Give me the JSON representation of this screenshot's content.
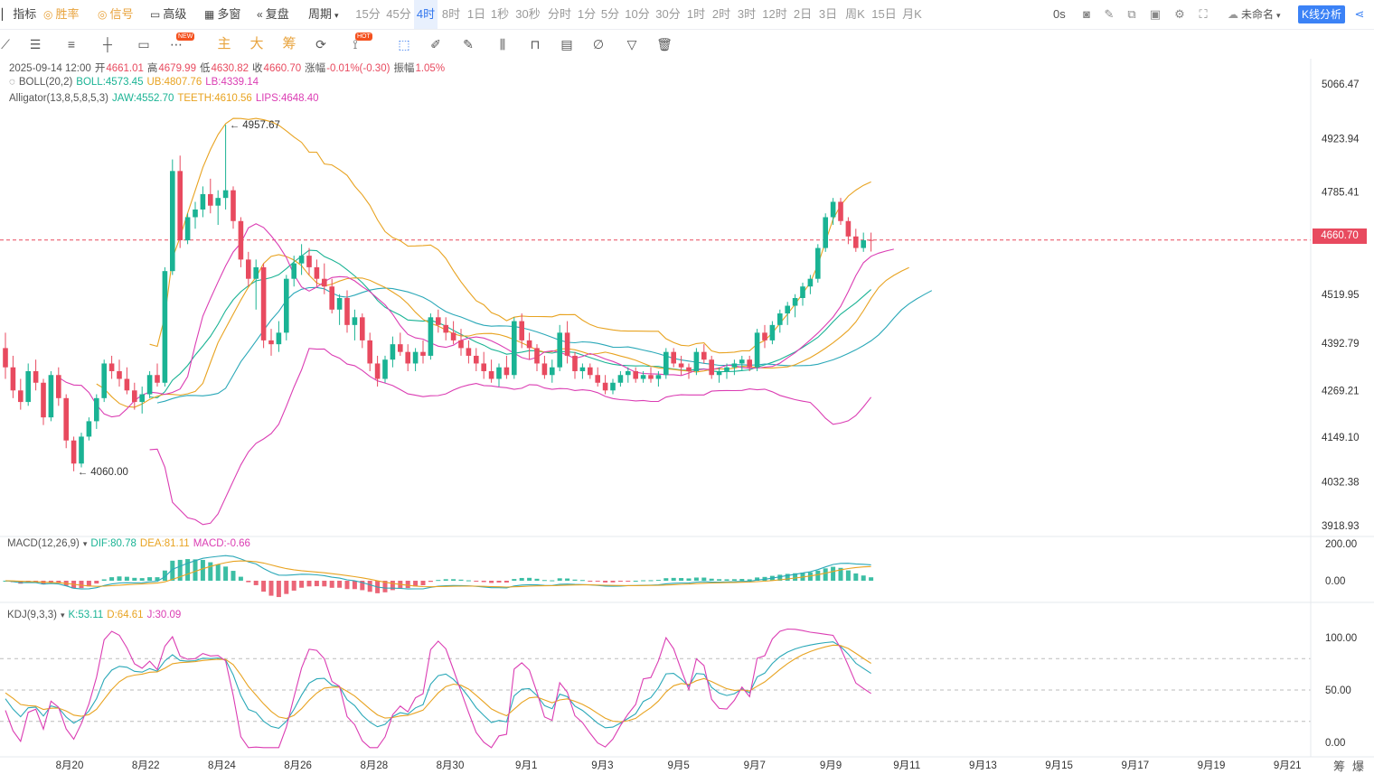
{
  "toolbar": {
    "indicator": "指标",
    "winrate": "胜率",
    "signal": "信号",
    "advanced": "高级",
    "multiwin": "多窗",
    "replay": "复盘",
    "period": "周期",
    "periods": [
      "15分",
      "45分",
      "4时",
      "8时",
      "1日",
      "1秒",
      "30秒",
      "分时",
      "1分",
      "5分",
      "10分",
      "30分",
      "1时",
      "2时",
      "3时",
      "12时",
      "2日",
      "3日",
      "周K",
      "15日",
      "月K"
    ],
    "active_period": "4时",
    "seconds": "0s",
    "layout_name": "未命名",
    "kline_analysis": "K线分析"
  },
  "drawtools": {
    "zhu": "主",
    "da": "大",
    "chou": "筹",
    "new_badge": "NEW",
    "hot_badge": "HOT"
  },
  "ohlc": {
    "date": "2025-09-14 12:00",
    "open_label": "开",
    "open": "4661.01",
    "high_label": "高",
    "high": "4679.99",
    "low_label": "低",
    "low": "4630.82",
    "close_label": "收",
    "close": "4660.70",
    "chg_label": "涨幅",
    "chg": "-0.01%(-0.30)",
    "amp_label": "振幅",
    "amp": "1.05%"
  },
  "boll": {
    "name": "BOLL(20,2)",
    "mid": "BOLL:4573.45",
    "ub": "UB:4807.76",
    "lb": "LB:4339.14"
  },
  "alligator": {
    "name": "Alligator(13,8,5,8,5,3)",
    "jaw": "JAW:4552.70",
    "teeth": "TEETH:4610.56",
    "lips": "LIPS:4648.40"
  },
  "macd": {
    "name": "MACD(12,26,9)",
    "dif": "DIF:80.78",
    "dea": "DEA:81.11",
    "macd": "MACD:-0.66"
  },
  "kdj": {
    "name": "KDJ(9,3,3)",
    "k": "K:53.11",
    "d": "D:64.61",
    "j": "J:30.09"
  },
  "price_axis": [
    "5066.47",
    "4923.94",
    "4785.41",
    "4660.70",
    "4519.95",
    "4392.79",
    "4269.21",
    "4149.10",
    "4032.38",
    "3918.93"
  ],
  "macd_axis": [
    "200.00",
    "0.00"
  ],
  "kdj_axis": [
    "100.00",
    "50.00",
    "0.00"
  ],
  "current_price": "4660.70",
  "annotations": {
    "high": "4957.67",
    "low": "4060.00"
  },
  "x_labels": [
    "8月20",
    "8月22",
    "8月24",
    "8月26",
    "8月28",
    "8月30",
    "9月1",
    "9月3",
    "9月5",
    "9月7",
    "9月9",
    "9月11",
    "9月13",
    "9月15",
    "9月17",
    "9月19",
    "9月21"
  ],
  "corner": {
    "a": "筹",
    "b": "爆"
  },
  "colors": {
    "up": "#1ab394",
    "down": "#e84a5f",
    "boll_mid": "#1ab394",
    "boll_ub": "#e8a321",
    "boll_lb": "#db3db3",
    "accent": "#3b82f6"
  },
  "chart_data": {
    "type": "candlestick",
    "interval": "4h",
    "xlabel": "",
    "ylabel": "",
    "ylim": [
      3900,
      5120
    ],
    "candles_ohlc": [
      [
        4380,
        4420,
        4300,
        4330
      ],
      [
        4330,
        4360,
        4250,
        4270
      ],
      [
        4270,
        4300,
        4220,
        4240
      ],
      [
        4240,
        4340,
        4230,
        4320
      ],
      [
        4320,
        4350,
        4270,
        4290
      ],
      [
        4290,
        4300,
        4180,
        4200
      ],
      [
        4200,
        4320,
        4190,
        4310
      ],
      [
        4310,
        4330,
        4230,
        4250
      ],
      [
        4250,
        4260,
        4120,
        4140
      ],
      [
        4140,
        4150,
        4060,
        4080
      ],
      [
        4080,
        4160,
        4070,
        4150
      ],
      [
        4150,
        4200,
        4140,
        4190
      ],
      [
        4190,
        4260,
        4170,
        4250
      ],
      [
        4250,
        4350,
        4240,
        4340
      ],
      [
        4340,
        4360,
        4300,
        4320
      ],
      [
        4320,
        4350,
        4280,
        4300
      ],
      [
        4300,
        4330,
        4260,
        4270
      ],
      [
        4270,
        4290,
        4220,
        4240
      ],
      [
        4240,
        4280,
        4210,
        4260
      ],
      [
        4260,
        4320,
        4250,
        4310
      ],
      [
        4310,
        4340,
        4280,
        4290
      ],
      [
        4290,
        4590,
        4280,
        4580
      ],
      [
        4580,
        4870,
        4570,
        4840
      ],
      [
        4840,
        4880,
        4640,
        4660
      ],
      [
        4660,
        4730,
        4650,
        4720
      ],
      [
        4720,
        4760,
        4690,
        4740
      ],
      [
        4740,
        4800,
        4720,
        4780
      ],
      [
        4780,
        4820,
        4730,
        4750
      ],
      [
        4750,
        4790,
        4700,
        4770
      ],
      [
        4770,
        4960,
        4740,
        4790
      ],
      [
        4790,
        4800,
        4690,
        4710
      ],
      [
        4710,
        4720,
        4590,
        4610
      ],
      [
        4610,
        4630,
        4540,
        4560
      ],
      [
        4560,
        4610,
        4480,
        4590
      ],
      [
        4590,
        4600,
        4380,
        4400
      ],
      [
        4400,
        4430,
        4360,
        4390
      ],
      [
        4390,
        4450,
        4370,
        4420
      ],
      [
        4420,
        4570,
        4400,
        4560
      ],
      [
        4560,
        4620,
        4540,
        4600
      ],
      [
        4600,
        4650,
        4570,
        4620
      ],
      [
        4620,
        4640,
        4570,
        4590
      ],
      [
        4590,
        4610,
        4540,
        4560
      ],
      [
        4560,
        4600,
        4520,
        4540
      ],
      [
        4540,
        4560,
        4470,
        4480
      ],
      [
        4480,
        4520,
        4440,
        4510
      ],
      [
        4510,
        4530,
        4420,
        4440
      ],
      [
        4440,
        4480,
        4400,
        4460
      ],
      [
        4460,
        4470,
        4380,
        4400
      ],
      [
        4400,
        4420,
        4320,
        4340
      ],
      [
        4340,
        4360,
        4280,
        4300
      ],
      [
        4300,
        4360,
        4290,
        4350
      ],
      [
        4350,
        4410,
        4330,
        4390
      ],
      [
        4390,
        4420,
        4360,
        4370
      ],
      [
        4370,
        4390,
        4320,
        4340
      ],
      [
        4340,
        4380,
        4320,
        4370
      ],
      [
        4370,
        4400,
        4340,
        4360
      ],
      [
        4360,
        4470,
        4350,
        4460
      ],
      [
        4460,
        4480,
        4420,
        4440
      ],
      [
        4440,
        4460,
        4400,
        4420
      ],
      [
        4420,
        4450,
        4390,
        4400
      ],
      [
        4400,
        4430,
        4360,
        4380
      ],
      [
        4380,
        4400,
        4340,
        4360
      ],
      [
        4360,
        4380,
        4320,
        4340
      ],
      [
        4340,
        4370,
        4300,
        4320
      ],
      [
        4320,
        4350,
        4290,
        4300
      ],
      [
        4300,
        4340,
        4280,
        4330
      ],
      [
        4330,
        4360,
        4300,
        4310
      ],
      [
        4310,
        4460,
        4300,
        4450
      ],
      [
        4450,
        4470,
        4380,
        4400
      ],
      [
        4400,
        4420,
        4350,
        4380
      ],
      [
        4380,
        4390,
        4320,
        4340
      ],
      [
        4340,
        4360,
        4300,
        4310
      ],
      [
        4310,
        4350,
        4290,
        4330
      ],
      [
        4330,
        4440,
        4320,
        4420
      ],
      [
        4420,
        4450,
        4340,
        4360
      ],
      [
        4360,
        4370,
        4300,
        4320
      ],
      [
        4320,
        4340,
        4300,
        4330
      ],
      [
        4330,
        4340,
        4300,
        4310
      ],
      [
        4310,
        4330,
        4280,
        4290
      ],
      [
        4290,
        4310,
        4260,
        4270
      ],
      [
        4270,
        4300,
        4260,
        4290
      ],
      [
        4290,
        4320,
        4280,
        4310
      ],
      [
        4310,
        4330,
        4290,
        4320
      ],
      [
        4320,
        4330,
        4290,
        4300
      ],
      [
        4300,
        4320,
        4290,
        4310
      ],
      [
        4310,
        4330,
        4290,
        4300
      ],
      [
        4300,
        4320,
        4280,
        4310
      ],
      [
        4310,
        4380,
        4300,
        4370
      ],
      [
        4370,
        4380,
        4330,
        4340
      ],
      [
        4340,
        4360,
        4310,
        4330
      ],
      [
        4330,
        4340,
        4300,
        4320
      ],
      [
        4320,
        4380,
        4310,
        4370
      ],
      [
        4370,
        4390,
        4340,
        4350
      ],
      [
        4350,
        4360,
        4300,
        4310
      ],
      [
        4310,
        4330,
        4290,
        4320
      ],
      [
        4320,
        4340,
        4300,
        4330
      ],
      [
        4330,
        4350,
        4310,
        4340
      ],
      [
        4340,
        4360,
        4320,
        4350
      ],
      [
        4350,
        4360,
        4320,
        4330
      ],
      [
        4330,
        4430,
        4320,
        4420
      ],
      [
        4420,
        4440,
        4380,
        4400
      ],
      [
        4400,
        4450,
        4390,
        4440
      ],
      [
        4440,
        4480,
        4420,
        4470
      ],
      [
        4470,
        4500,
        4440,
        4490
      ],
      [
        4490,
        4520,
        4460,
        4510
      ],
      [
        4510,
        4550,
        4490,
        4540
      ],
      [
        4540,
        4570,
        4520,
        4560
      ],
      [
        4560,
        4650,
        4550,
        4640
      ],
      [
        4640,
        4730,
        4630,
        4720
      ],
      [
        4720,
        4770,
        4700,
        4760
      ],
      [
        4760,
        4770,
        4700,
        4710
      ],
      [
        4710,
        4720,
        4650,
        4670
      ],
      [
        4670,
        4690,
        4630,
        4640
      ],
      [
        4640,
        4680,
        4630,
        4660
      ],
      [
        4661.01,
        4679.99,
        4630.82,
        4660.7
      ]
    ]
  }
}
